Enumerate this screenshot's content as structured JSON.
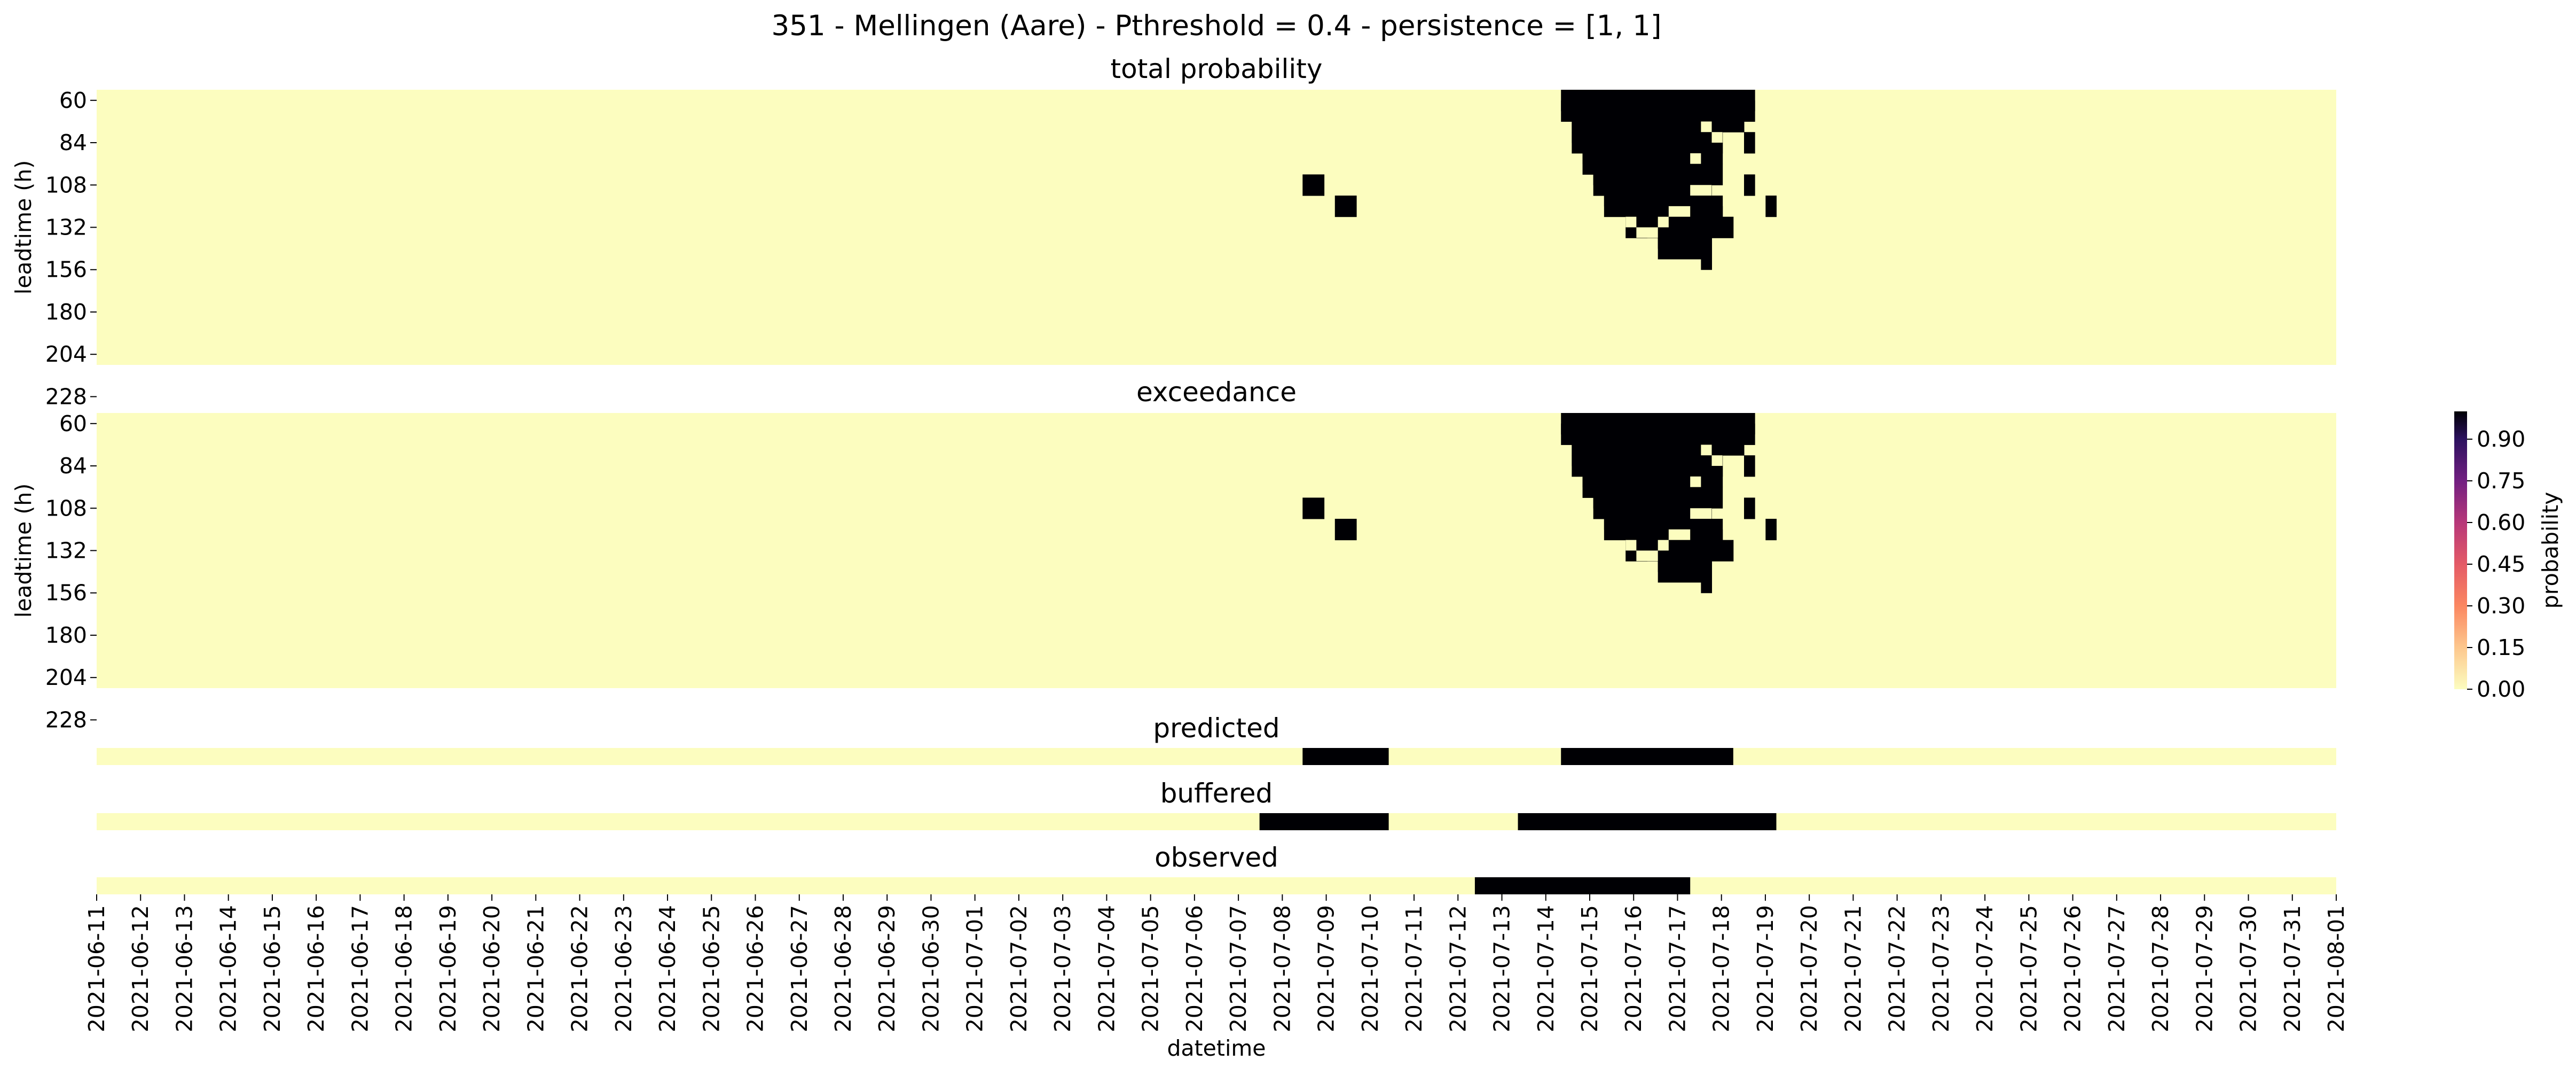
{
  "chart_data": {
    "type": "heatmap",
    "title": "351 - Mellingen (Aare) - Pthreshold = 0.4 - persistence = [1, 1]",
    "xlabel": "datetime",
    "x_ticks": [
      "2021-06-11",
      "2021-06-12",
      "2021-06-13",
      "2021-06-14",
      "2021-06-15",
      "2021-06-16",
      "2021-06-17",
      "2021-06-18",
      "2021-06-19",
      "2021-06-20",
      "2021-06-21",
      "2021-06-22",
      "2021-06-23",
      "2021-06-24",
      "2021-06-25",
      "2021-06-26",
      "2021-06-27",
      "2021-06-28",
      "2021-06-29",
      "2021-06-30",
      "2021-07-01",
      "2021-07-02",
      "2021-07-03",
      "2021-07-04",
      "2021-07-05",
      "2021-07-06",
      "2021-07-07",
      "2021-07-08",
      "2021-07-09",
      "2021-07-10",
      "2021-07-11",
      "2021-07-12",
      "2021-07-13",
      "2021-07-14",
      "2021-07-15",
      "2021-07-16",
      "2021-07-17",
      "2021-07-18",
      "2021-07-19",
      "2021-07-20",
      "2021-07-21",
      "2021-07-22",
      "2021-07-23",
      "2021-07-24",
      "2021-07-25",
      "2021-07-26",
      "2021-07-27",
      "2021-07-28",
      "2021-07-29",
      "2021-07-30",
      "2021-07-31",
      "2021-08-01"
    ],
    "colorbar": {
      "label": "probability",
      "ticks": [
        "0.00",
        "0.15",
        "0.30",
        "0.45",
        "0.60",
        "0.75",
        "0.90"
      ],
      "range": [
        0,
        1
      ],
      "low_color": "#fcfdbf",
      "high_color": "#000004"
    },
    "panels": [
      {
        "title": "total probability",
        "ylabel": "leadtime (h)",
        "y_ticks": [
          "60",
          "84",
          "108",
          "132",
          "156",
          "180",
          "204",
          "228"
        ],
        "high_cells": [
          [
            "2021-07-15",
            [
              "60-84",
              "84-108",
              "108-132",
              "132-156"
            ]
          ],
          [
            "2021-07-16",
            [
              "60-84",
              "84-108",
              "108-132",
              "132-156"
            ]
          ],
          [
            "2021-07-17",
            [
              "60-84",
              "84-108",
              "108-132",
              "132-156"
            ]
          ],
          [
            "2021-07-18",
            [
              "60-84",
              "84-108",
              "132-156"
            ]
          ],
          [
            "2021-07-09",
            [
              "108"
            ]
          ],
          [
            "2021-07-10",
            [
              "120"
            ]
          ]
        ]
      },
      {
        "title": "exceedance",
        "ylabel": "leadtime (h)",
        "y_ticks": [
          "60",
          "84",
          "108",
          "132",
          "156",
          "180",
          "204",
          "228"
        ],
        "high_cells": [
          [
            "2021-07-15",
            [
              "60-84",
              "84-108",
              "108-132",
              "132-156"
            ]
          ],
          [
            "2021-07-16",
            [
              "60-84",
              "84-108",
              "108-132",
              "132-156"
            ]
          ],
          [
            "2021-07-17",
            [
              "60-84",
              "84-108",
              "108-132",
              "132-156"
            ]
          ],
          [
            "2021-07-18",
            [
              "60-84",
              "84-108",
              "132-156"
            ]
          ],
          [
            "2021-07-09",
            [
              "108"
            ]
          ],
          [
            "2021-07-10",
            [
              "120"
            ]
          ]
        ]
      }
    ],
    "strips": [
      {
        "title": "predicted",
        "events": [
          [
            "2021-07-09",
            "2021-07-10"
          ],
          [
            "2021-07-15",
            "2021-07-18"
          ]
        ]
      },
      {
        "title": "buffered",
        "events": [
          [
            "2021-07-08",
            "2021-07-10"
          ],
          [
            "2021-07-14",
            "2021-07-19"
          ]
        ]
      },
      {
        "title": "observed",
        "events": [
          [
            "2021-07-13",
            "2021-07-17"
          ]
        ]
      }
    ]
  }
}
